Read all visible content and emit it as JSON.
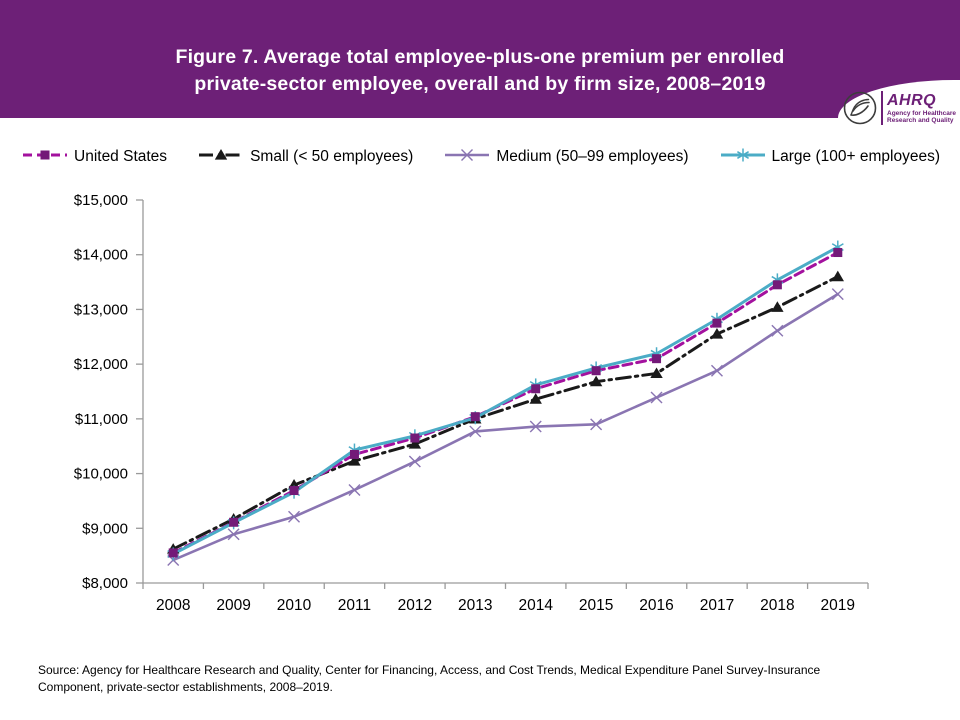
{
  "header": {
    "title_lines": [
      "Figure 7. Average total employee-plus-one premium per enrolled",
      "private-sector employee, overall and by firm size, 2008–2019"
    ],
    "bg_color": "#6D2077",
    "logo": {
      "wordmark": "AHRQ",
      "tagline_lines": [
        "Agency for Healthcare",
        "Research and Quality"
      ]
    }
  },
  "chart_data": {
    "type": "line",
    "x_categories": [
      "2008",
      "2009",
      "2010",
      "2011",
      "2012",
      "2013",
      "2014",
      "2015",
      "2016",
      "2017",
      "2018",
      "2019"
    ],
    "ylim": [
      8000,
      15000
    ],
    "ytick_interval": 1000,
    "ytick_labels": [
      "$8,000",
      "$9,000",
      "$10,000",
      "$11,000",
      "$12,000",
      "$13,000",
      "$14,000",
      "$15,000"
    ],
    "grid": false,
    "legend_position": "top",
    "axis_color": "#9A9A9A",
    "series": [
      {
        "name": "United States",
        "line_color": "#A3119E",
        "marker_color": "#731A78",
        "marker": "square",
        "dash": "9 5",
        "values": [
          8550,
          9110,
          9690,
          10350,
          10650,
          11040,
          11550,
          11880,
          12100,
          12750,
          13450,
          14040
        ]
      },
      {
        "name": "Small (< 50 employees)",
        "line_color": "#1A1A1A",
        "marker_color": "#1A1A1A",
        "marker": "triangle",
        "dash": "14 5 2.5 5",
        "values": [
          8620,
          9170,
          9790,
          10230,
          10540,
          11000,
          11360,
          11680,
          11830,
          12550,
          13040,
          13600
        ]
      },
      {
        "name": "Medium (50–99 employees)",
        "line_color": "#8A75B2",
        "marker_color": "#8A75B2",
        "marker": "x",
        "dash": "none",
        "values": [
          8420,
          8890,
          9210,
          9700,
          10220,
          10770,
          10860,
          10900,
          11390,
          11880,
          12610,
          13280
        ]
      },
      {
        "name": "Large (100+ employees)",
        "line_color": "#4BACC6",
        "marker_color": "#4BACC6",
        "marker": "asterisk",
        "dash": "none",
        "values": [
          8530,
          9100,
          9660,
          10430,
          10690,
          11020,
          11620,
          11930,
          12190,
          12820,
          13540,
          14140
        ]
      }
    ]
  },
  "source": {
    "text": "Source: Agency for Healthcare Research and Quality, Center for Financing, Access, and Cost Trends, Medical Expenditure Panel Survey-Insurance Component, private-sector establishments, 2008–2019."
  }
}
